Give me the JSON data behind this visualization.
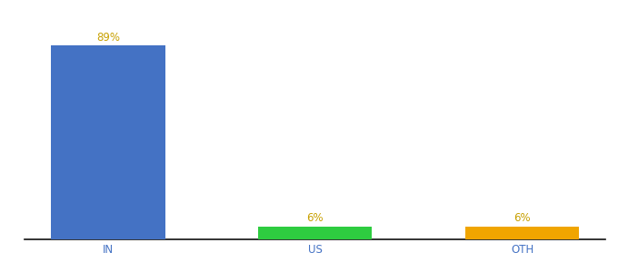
{
  "categories": [
    "IN",
    "US",
    "OTH"
  ],
  "values": [
    89,
    6,
    6
  ],
  "bar_colors": [
    "#4472c4",
    "#2ecc40",
    "#f0a500"
  ],
  "label_texts": [
    "89%",
    "6%",
    "6%"
  ],
  "background_color": "#ffffff",
  "ylim": [
    0,
    100
  ],
  "label_color": "#c8a000",
  "bar_width": 0.55,
  "tick_color": "#4472c4",
  "tick_fontsize": 8.5
}
